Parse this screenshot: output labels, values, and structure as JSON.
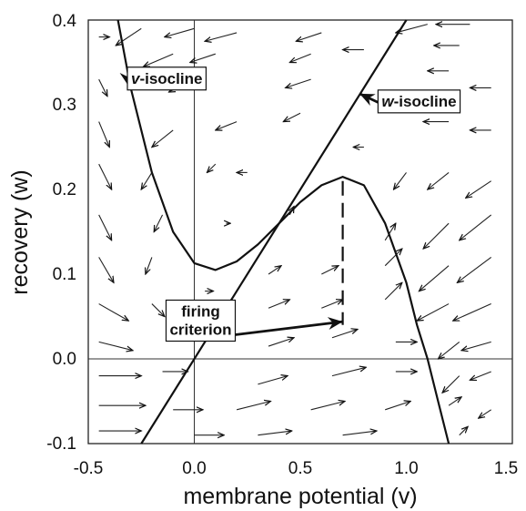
{
  "chart_data": {
    "type": "phase-plane",
    "xlabel": "membrane potential (v)",
    "ylabel": "recovery (w)",
    "xlim": [
      -0.5,
      1.5
    ],
    "ylim": [
      -0.1,
      0.4
    ],
    "x_ticks": [
      "-0.5",
      "0.0",
      "0.5",
      "1.0",
      "1.5"
    ],
    "y_ticks": [
      "-0.1",
      "0.0",
      "0.1",
      "0.2",
      "0.3",
      "0.4"
    ],
    "reference_lines": {
      "x": 0.0,
      "y": 0.0
    },
    "curves": [
      {
        "name": "v-isocline",
        "points": [
          [
            -0.36,
            0.4
          ],
          [
            -0.3,
            0.32
          ],
          [
            -0.2,
            0.22
          ],
          [
            -0.1,
            0.15
          ],
          [
            0.0,
            0.113
          ],
          [
            0.1,
            0.105
          ],
          [
            0.2,
            0.115
          ],
          [
            0.3,
            0.135
          ],
          [
            0.4,
            0.16
          ],
          [
            0.5,
            0.185
          ],
          [
            0.6,
            0.205
          ],
          [
            0.7,
            0.215
          ],
          [
            0.8,
            0.205
          ],
          [
            0.9,
            0.16
          ],
          [
            1.0,
            0.09
          ],
          [
            1.05,
            0.04
          ],
          [
            1.1,
            0.0
          ],
          [
            1.15,
            -0.05
          ],
          [
            1.2,
            -0.1
          ]
        ]
      },
      {
        "name": "w-isocline",
        "points": [
          [
            -0.25,
            -0.1
          ],
          [
            1.0,
            0.4
          ]
        ]
      }
    ],
    "dashed_line": {
      "x": 0.7,
      "y_range": [
        0.04,
        0.21
      ]
    },
    "annotations": [
      {
        "italic": "v",
        "text": "-isocline",
        "label_at": [
          -0.13,
          0.325
        ],
        "arrow_to": [
          -0.31,
          0.322
        ]
      },
      {
        "italic": "w",
        "text": "-isocline",
        "label_at": [
          1.06,
          0.298
        ],
        "arrow_to": [
          0.78,
          0.313
        ]
      },
      {
        "text_lines": [
          "firing",
          "criterion"
        ],
        "label_at": [
          0.03,
          0.05
        ],
        "arrow_to": [
          0.7,
          0.044
        ]
      }
    ],
    "vector_field": [
      {
        "x": -0.45,
        "y": 0.38,
        "dx": 0.05,
        "dy": 0.0
      },
      {
        "x": -0.25,
        "y": 0.39,
        "dx": -0.12,
        "dy": -0.02
      },
      {
        "x": 0.0,
        "y": 0.39,
        "dx": -0.14,
        "dy": -0.01
      },
      {
        "x": 0.2,
        "y": 0.385,
        "dx": -0.15,
        "dy": -0.01
      },
      {
        "x": 0.6,
        "y": 0.385,
        "dx": -0.12,
        "dy": -0.01
      },
      {
        "x": 1.1,
        "y": 0.395,
        "dx": -0.15,
        "dy": -0.01
      },
      {
        "x": 1.3,
        "y": 0.395,
        "dx": -0.16,
        "dy": 0.0
      },
      {
        "x": -0.1,
        "y": 0.36,
        "dx": -0.14,
        "dy": -0.015
      },
      {
        "x": 0.1,
        "y": 0.36,
        "dx": -0.12,
        "dy": -0.01
      },
      {
        "x": 0.55,
        "y": 0.36,
        "dx": -0.1,
        "dy": -0.01
      },
      {
        "x": 0.8,
        "y": 0.365,
        "dx": -0.1,
        "dy": 0.0
      },
      {
        "x": 1.25,
        "y": 0.37,
        "dx": -0.12,
        "dy": 0.0
      },
      {
        "x": -0.45,
        "y": 0.33,
        "dx": 0.04,
        "dy": -0.02
      },
      {
        "x": 0.0,
        "y": 0.33,
        "dx": -0.12,
        "dy": -0.015
      },
      {
        "x": 0.55,
        "y": 0.33,
        "dx": -0.12,
        "dy": -0.01
      },
      {
        "x": 1.2,
        "y": 0.34,
        "dx": -0.1,
        "dy": 0.0
      },
      {
        "x": 1.4,
        "y": 0.32,
        "dx": -0.1,
        "dy": 0.0
      },
      {
        "x": -0.45,
        "y": 0.28,
        "dx": 0.05,
        "dy": -0.03
      },
      {
        "x": -0.1,
        "y": 0.27,
        "dx": -0.1,
        "dy": -0.02
      },
      {
        "x": 0.2,
        "y": 0.28,
        "dx": -0.1,
        "dy": -0.01
      },
      {
        "x": 0.5,
        "y": 0.29,
        "dx": -0.08,
        "dy": -0.01
      },
      {
        "x": 0.8,
        "y": 0.25,
        "dx": -0.05,
        "dy": 0.0
      },
      {
        "x": 1.2,
        "y": 0.28,
        "dx": -0.12,
        "dy": 0.0
      },
      {
        "x": 1.4,
        "y": 0.27,
        "dx": -0.1,
        "dy": 0.0
      },
      {
        "x": -0.45,
        "y": 0.23,
        "dx": 0.06,
        "dy": -0.03
      },
      {
        "x": -0.2,
        "y": 0.22,
        "dx": -0.05,
        "dy": -0.02
      },
      {
        "x": 0.1,
        "y": 0.23,
        "dx": -0.04,
        "dy": -0.01
      },
      {
        "x": 0.25,
        "y": 0.22,
        "dx": -0.05,
        "dy": 0.0
      },
      {
        "x": 1.0,
        "y": 0.22,
        "dx": -0.06,
        "dy": -0.02
      },
      {
        "x": 1.2,
        "y": 0.22,
        "dx": -0.1,
        "dy": -0.02
      },
      {
        "x": 1.4,
        "y": 0.21,
        "dx": -0.12,
        "dy": -0.02
      },
      {
        "x": -0.45,
        "y": 0.17,
        "dx": 0.06,
        "dy": -0.03
      },
      {
        "x": -0.15,
        "y": 0.17,
        "dx": -0.04,
        "dy": -0.02
      },
      {
        "x": 0.15,
        "y": 0.16,
        "dx": 0.02,
        "dy": 0.0
      },
      {
        "x": 0.45,
        "y": 0.17,
        "dx": 0.02,
        "dy": 0.01
      },
      {
        "x": 0.9,
        "y": 0.14,
        "dx": 0.05,
        "dy": 0.02
      },
      {
        "x": 1.2,
        "y": 0.16,
        "dx": -0.12,
        "dy": -0.03
      },
      {
        "x": 1.4,
        "y": 0.17,
        "dx": -0.15,
        "dy": -0.03
      },
      {
        "x": -0.45,
        "y": 0.12,
        "dx": 0.07,
        "dy": -0.03
      },
      {
        "x": -0.2,
        "y": 0.12,
        "dx": -0.03,
        "dy": -0.02
      },
      {
        "x": 0.05,
        "y": 0.08,
        "dx": 0.04,
        "dy": 0.0
      },
      {
        "x": 0.35,
        "y": 0.1,
        "dx": 0.06,
        "dy": 0.01
      },
      {
        "x": 0.6,
        "y": 0.1,
        "dx": 0.08,
        "dy": 0.01
      },
      {
        "x": 0.9,
        "y": 0.11,
        "dx": 0.08,
        "dy": 0.02
      },
      {
        "x": 1.2,
        "y": 0.11,
        "dx": -0.14,
        "dy": -0.03
      },
      {
        "x": 1.4,
        "y": 0.12,
        "dx": -0.16,
        "dy": -0.03
      },
      {
        "x": -0.45,
        "y": 0.065,
        "dx": 0.14,
        "dy": -0.02
      },
      {
        "x": -0.2,
        "y": 0.065,
        "dx": 0.06,
        "dy": -0.015
      },
      {
        "x": 0.35,
        "y": 0.06,
        "dx": 0.1,
        "dy": 0.01
      },
      {
        "x": 0.6,
        "y": 0.06,
        "dx": 0.1,
        "dy": 0.01
      },
      {
        "x": 0.9,
        "y": 0.07,
        "dx": 0.08,
        "dy": 0.02
      },
      {
        "x": 1.2,
        "y": 0.065,
        "dx": -0.15,
        "dy": -0.02
      },
      {
        "x": 1.4,
        "y": 0.065,
        "dx": -0.18,
        "dy": -0.02
      },
      {
        "x": -0.45,
        "y": 0.02,
        "dx": 0.16,
        "dy": -0.01
      },
      {
        "x": 0.35,
        "y": 0.015,
        "dx": 0.12,
        "dy": 0.01
      },
      {
        "x": 0.65,
        "y": 0.025,
        "dx": 0.12,
        "dy": 0.01
      },
      {
        "x": 0.95,
        "y": 0.02,
        "dx": 0.1,
        "dy": 0.0
      },
      {
        "x": 1.25,
        "y": 0.02,
        "dx": -0.1,
        "dy": -0.02
      },
      {
        "x": 1.4,
        "y": 0.02,
        "dx": -0.14,
        "dy": -0.01
      },
      {
        "x": -0.45,
        "y": -0.02,
        "dx": 0.2,
        "dy": 0.0
      },
      {
        "x": -0.15,
        "y": -0.015,
        "dx": 0.12,
        "dy": 0.0
      },
      {
        "x": 0.3,
        "y": -0.03,
        "dx": 0.14,
        "dy": 0.01
      },
      {
        "x": 0.65,
        "y": -0.02,
        "dx": 0.16,
        "dy": 0.01
      },
      {
        "x": 0.95,
        "y": -0.015,
        "dx": 0.1,
        "dy": 0.0
      },
      {
        "x": 1.25,
        "y": -0.02,
        "dx": -0.08,
        "dy": -0.02
      },
      {
        "x": 1.4,
        "y": -0.015,
        "dx": -0.1,
        "dy": -0.01
      },
      {
        "x": -0.45,
        "y": -0.055,
        "dx": 0.22,
        "dy": 0.0
      },
      {
        "x": -0.1,
        "y": -0.06,
        "dx": 0.14,
        "dy": 0.0
      },
      {
        "x": 0.2,
        "y": -0.06,
        "dx": 0.16,
        "dy": 0.01
      },
      {
        "x": 0.55,
        "y": -0.06,
        "dx": 0.16,
        "dy": 0.01
      },
      {
        "x": 0.9,
        "y": -0.06,
        "dx": 0.12,
        "dy": 0.01
      },
      {
        "x": 1.2,
        "y": -0.055,
        "dx": 0.06,
        "dy": 0.01
      },
      {
        "x": 1.4,
        "y": -0.06,
        "dx": -0.06,
        "dy": -0.01
      },
      {
        "x": -0.45,
        "y": -0.085,
        "dx": 0.2,
        "dy": 0.0
      },
      {
        "x": 0.0,
        "y": -0.09,
        "dx": 0.14,
        "dy": 0.0
      },
      {
        "x": 0.3,
        "y": -0.09,
        "dx": 0.16,
        "dy": 0.005
      },
      {
        "x": 0.7,
        "y": -0.09,
        "dx": 0.16,
        "dy": 0.005
      },
      {
        "x": 1.25,
        "y": -0.09,
        "dx": 0.04,
        "dy": 0.01
      }
    ]
  },
  "colors": {
    "ink": "#111111",
    "background": "#ffffff"
  }
}
